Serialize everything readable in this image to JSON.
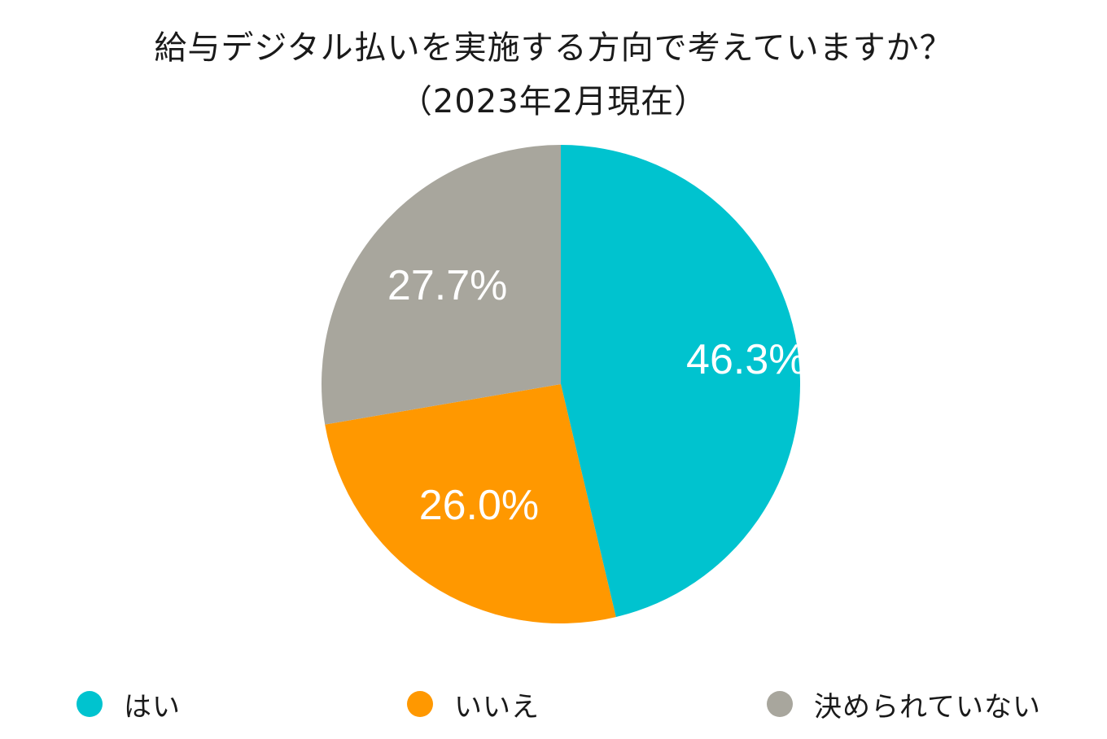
{
  "chart_data": {
    "type": "pie",
    "title": "給与デジタル払いを実施する方向で考えていますか？",
    "subtitle": "（2023年2月現在）",
    "categories": [
      "はい",
      "いいえ",
      "決められていない"
    ],
    "values": [
      46.3,
      26.0,
      27.7
    ],
    "value_labels": [
      "46.3%",
      "26.0%",
      "27.7%"
    ],
    "colors": [
      "#00c3cf",
      "#ff9800",
      "#a8a69d"
    ],
    "start_angle": "12 o'clock",
    "direction": "clockwise",
    "legend_position": "bottom"
  }
}
